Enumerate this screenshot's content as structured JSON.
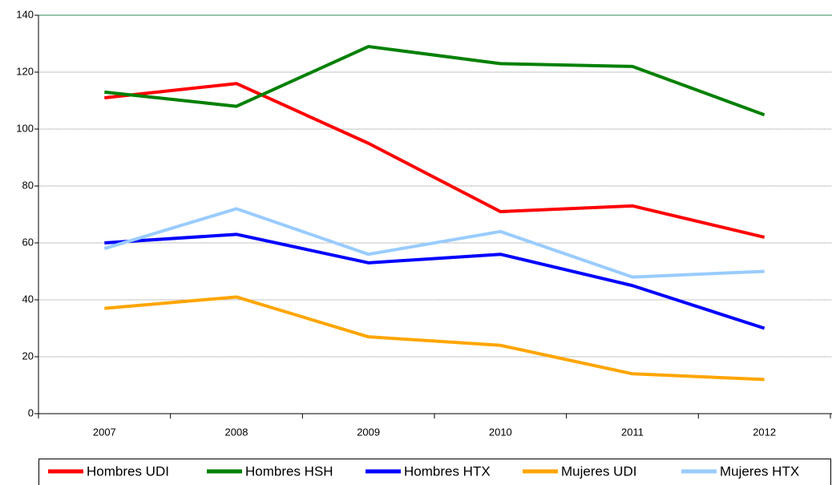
{
  "chart_data": {
    "type": "line",
    "categories": [
      "2007",
      "2008",
      "2009",
      "2010",
      "2011",
      "2012"
    ],
    "series": [
      {
        "name": "Hombres UDI",
        "color": "#ff0000",
        "values": [
          111,
          116,
          95,
          71,
          73,
          62
        ]
      },
      {
        "name": "Hombres HSH",
        "color": "#008000",
        "values": [
          113,
          108,
          129,
          123,
          122,
          105
        ]
      },
      {
        "name": "Hombres HTX",
        "color": "#0000ff",
        "values": [
          60,
          63,
          53,
          56,
          45,
          30
        ]
      },
      {
        "name": "Mujeres UDI",
        "color": "#ffa500",
        "values": [
          37,
          41,
          27,
          24,
          14,
          12
        ]
      },
      {
        "name": "Mujeres HTX",
        "color": "#99ccff",
        "values": [
          58,
          72,
          56,
          64,
          48,
          50
        ]
      }
    ],
    "ylim": [
      0,
      140
    ],
    "yticks": [
      0,
      20,
      40,
      60,
      80,
      100,
      120,
      140
    ],
    "grid": true
  }
}
